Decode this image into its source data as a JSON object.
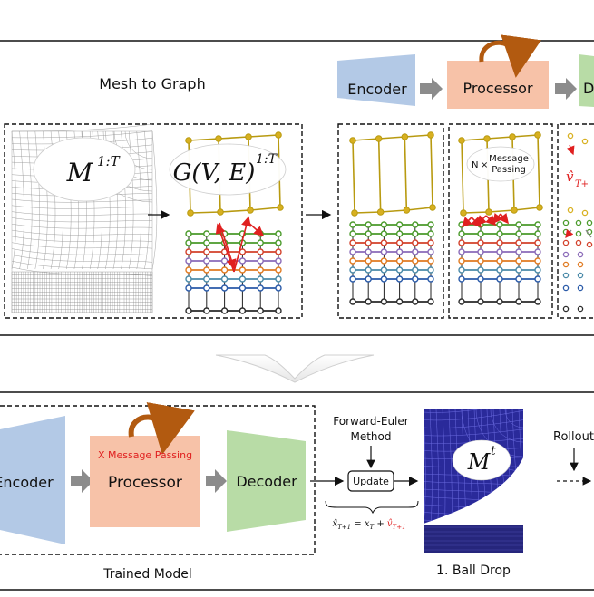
{
  "top_panel": {
    "section_title": "Mesh to Graph",
    "mesh_label": "M^{1:T}",
    "mesh_label_base": "M",
    "mesh_label_sup": "1:T",
    "graph_label_base": "G(V, E)",
    "graph_label_sup": "1:T",
    "encoder_label": "Encoder",
    "processor_label": "Processor",
    "decoder_label_partial": "D",
    "message_passing_n": "N",
    "message_passing_times": "×",
    "message_passing_line1": "Message",
    "message_passing_line2": "Passing",
    "decoder_output_label": "v̂",
    "decoder_output_sub": "T+"
  },
  "bottom_panel": {
    "encoder_label": "Encoder",
    "processor_label": "Processor",
    "processor_sub": "X Message Passing",
    "decoder_label": "Decoder",
    "trained_model_caption": "Trained Model",
    "method_line1": "Forward-Euler",
    "method_line2": "Method",
    "update_label": "Update",
    "equation": "x̂_{T+1} = x_T + v̂_{T+1}",
    "result_label_base": "M",
    "result_label_sup": "t",
    "rollout_label": "Rollout",
    "example_caption": "1. Ball Drop"
  },
  "colors": {
    "encoder_fill": "#b3c9e6",
    "processor_fill": "#f7c2a8",
    "decoder_fill": "#b8dca6",
    "arrow_gray": "#8c8c8c",
    "message_red": "#e02020",
    "graph_gold": "#b89a10",
    "graph_green": "#4a9a2a",
    "graph_red": "#d2402a",
    "graph_purple": "#8a6ab8",
    "graph_orange": "#e07a20",
    "graph_teal": "#4a8aa8",
    "graph_blue": "#2a5aa8",
    "graph_black": "#2a2a2a",
    "ball_blue": "#2a2a9a",
    "curved_arrow": "#b25a10"
  }
}
